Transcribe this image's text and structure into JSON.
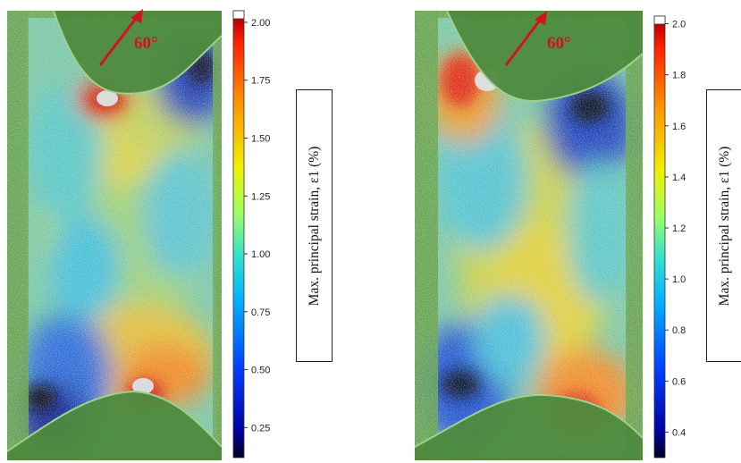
{
  "panels": [
    {
      "angle_label": "60°",
      "colorbar_label": "Max. principal strain, ε1 (%)",
      "colorbar_ticks": [
        "2.00",
        "1.75",
        "1.50",
        "1.25",
        "1.00",
        "0.75",
        "0.50",
        "0.25"
      ],
      "colorbar_range": [
        0.12,
        2.05
      ]
    },
    {
      "angle_label": "60°",
      "colorbar_label": "Max. principal strain, ε1 (%)",
      "colorbar_ticks": [
        "2.0",
        "1.8",
        "1.6",
        "1.4",
        "1.2",
        "1.0",
        "0.8",
        "0.6",
        "0.4"
      ],
      "colorbar_range": [
        0.3,
        2.03
      ]
    }
  ],
  "colors": {
    "specimen_green": "#5f9a4d",
    "fixture_green": "#4e8a3e",
    "arrow_red": "#d0141a"
  }
}
